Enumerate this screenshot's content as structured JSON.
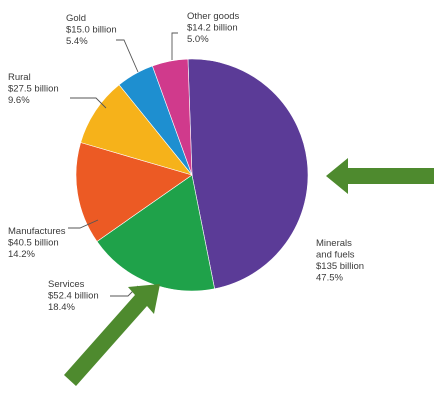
{
  "chart_data": {
    "type": "pie",
    "title": "",
    "unit": "$ billion",
    "slices": [
      {
        "name": "Minerals and fuels",
        "value": 135.0,
        "percent": 47.5,
        "color": "#5b3b97",
        "label_lines": [
          "Minerals",
          "and fuels",
          "$135 billion",
          "47.5%"
        ]
      },
      {
        "name": "Services",
        "value": 52.4,
        "percent": 18.4,
        "color": "#1fa24a",
        "label_lines": [
          "Services",
          "$52.4 billion",
          "18.4%"
        ]
      },
      {
        "name": "Manufactures",
        "value": 40.5,
        "percent": 14.2,
        "color": "#ec5a24",
        "label_lines": [
          "Manufactures",
          "$40.5 billion",
          "14.2%"
        ]
      },
      {
        "name": "Rural",
        "value": 27.5,
        "percent": 9.6,
        "color": "#f6b21a",
        "label_lines": [
          "Rural",
          "$27.5 billion",
          "9.6%"
        ]
      },
      {
        "name": "Gold",
        "value": 15.0,
        "percent": 5.4,
        "color": "#1e8fd0",
        "label_lines": [
          "Gold",
          "$15.0 billion",
          "5.4%"
        ]
      },
      {
        "name": "Other goods",
        "value": 14.2,
        "percent": 5.0,
        "color": "#d03a8c",
        "label_lines": [
          "Other goods",
          "$14.2 billion",
          "5.0%"
        ]
      }
    ]
  },
  "annotations": {
    "arrow_color": "#4e8a2e",
    "arrows": [
      "minerals-and-fuels-pointer-arrow",
      "services-pointer-arrow"
    ]
  }
}
